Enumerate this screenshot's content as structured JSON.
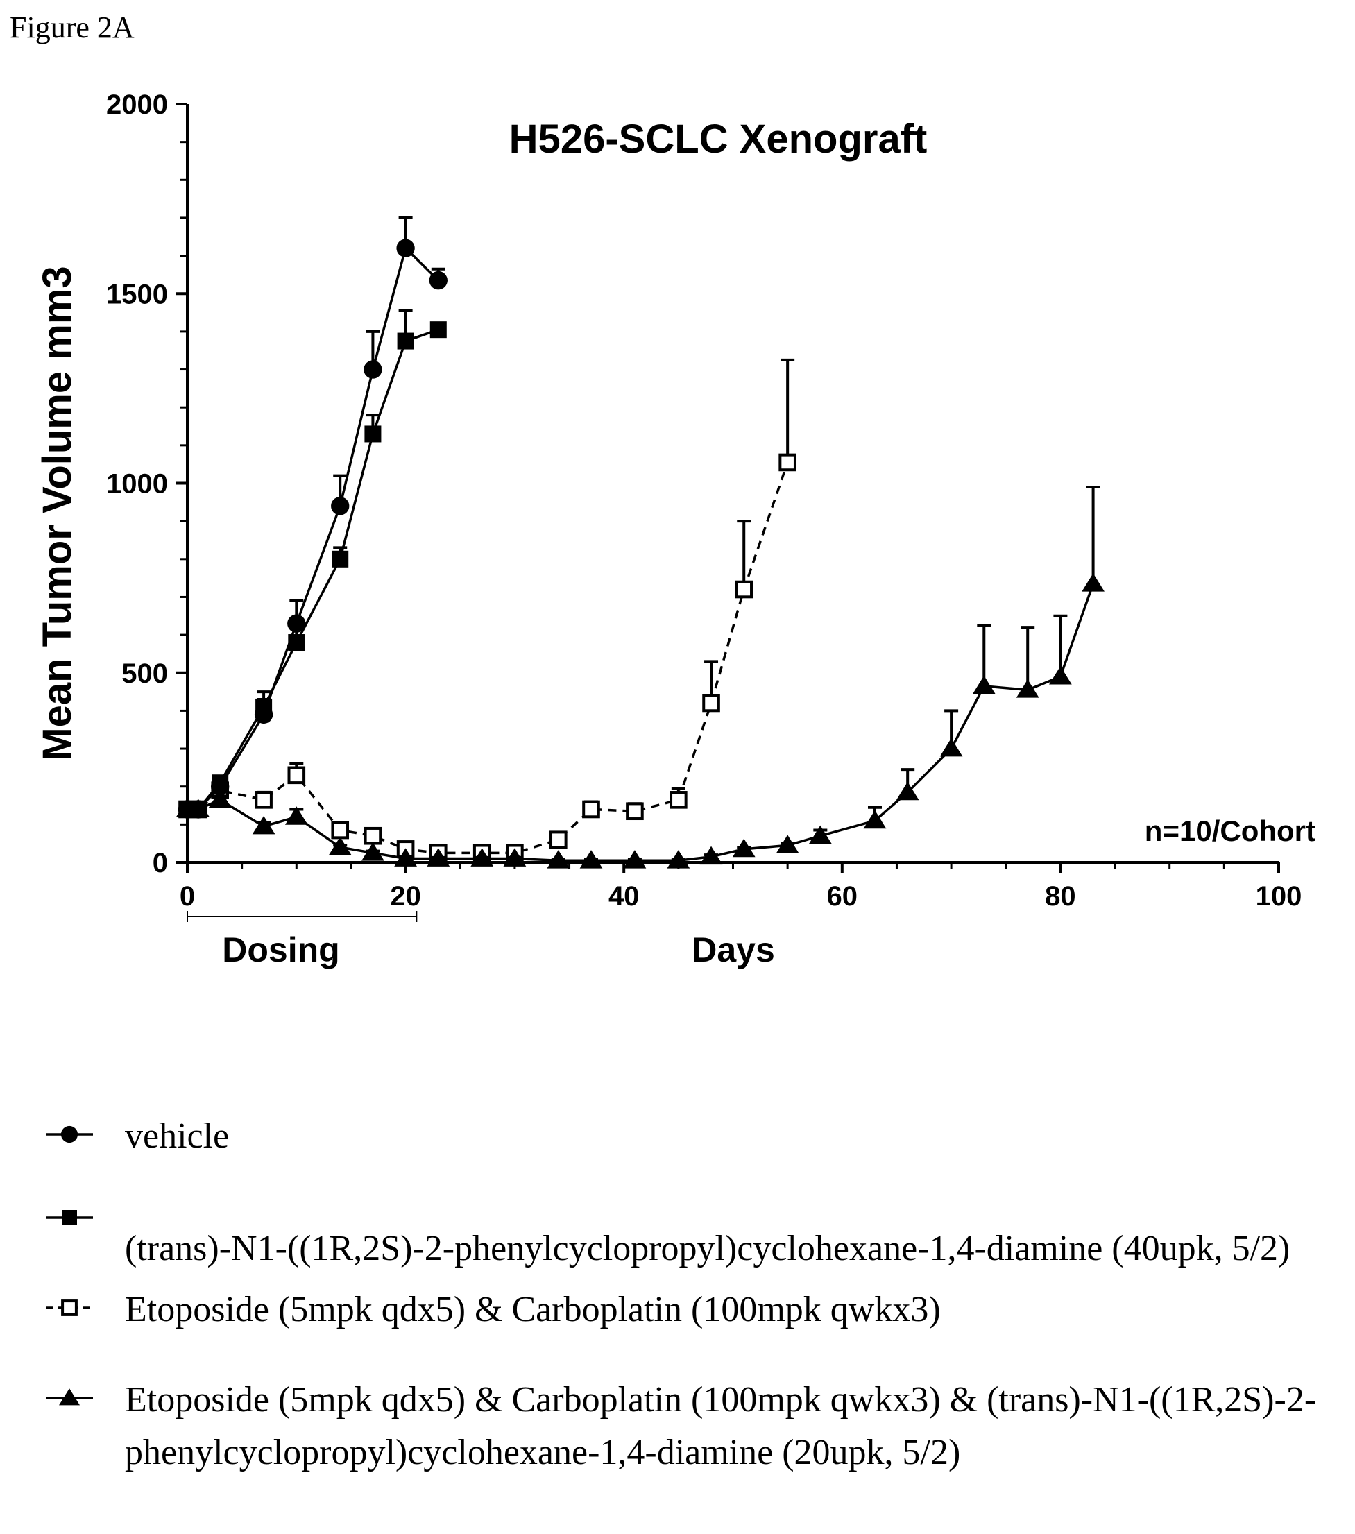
{
  "figure_label": "Figure 2A",
  "chart_data": {
    "type": "line",
    "title": "H526-SCLC Xenograft",
    "xlabel": "Days",
    "ylabel": "Mean Tumor Volume mm3",
    "xlim": [
      0,
      100
    ],
    "ylim": [
      0,
      2000
    ],
    "xticks": [
      0,
      20,
      40,
      60,
      80,
      100
    ],
    "yticks": [
      0,
      500,
      1000,
      1500,
      2000
    ],
    "annotations": {
      "cohort_note": "n=10/Cohort",
      "dosing_label": "Dosing",
      "dosing_range": [
        0,
        21
      ]
    },
    "series": [
      {
        "name": "vehicle",
        "marker": "filled-circle",
        "line": "solid",
        "x": [
          0,
          1,
          3,
          7,
          10,
          14,
          17,
          20,
          23
        ],
        "y": [
          140,
          140,
          200,
          390,
          630,
          940,
          1300,
          1620,
          1535
        ],
        "err": [
          10,
          10,
          20,
          40,
          60,
          80,
          100,
          80,
          30
        ]
      },
      {
        "name": "(trans)-N1-((1R,2S)-2-phenylcyclopropyl)cyclohexane-1,4-diamine (40upk, 5/2)",
        "marker": "filled-square",
        "line": "solid",
        "x": [
          0,
          1,
          3,
          7,
          10,
          14,
          17,
          20,
          23
        ],
        "y": [
          140,
          140,
          210,
          410,
          580,
          800,
          1130,
          1375,
          1405
        ],
        "err": [
          10,
          10,
          15,
          40,
          40,
          30,
          50,
          80,
          0
        ]
      },
      {
        "name": "Etoposide (5mpk qdx5) & Carboplatin (100mpk qwkx3)",
        "marker": "open-square",
        "line": "dashed",
        "x": [
          0,
          1,
          3,
          7,
          10,
          14,
          17,
          20,
          23,
          27,
          30,
          34,
          37,
          41,
          45,
          48,
          51,
          55
        ],
        "y": [
          140,
          140,
          190,
          165,
          230,
          85,
          70,
          35,
          25,
          25,
          25,
          60,
          140,
          135,
          165,
          420,
          720,
          1055
        ],
        "err": [
          10,
          10,
          15,
          20,
          30,
          10,
          10,
          5,
          5,
          5,
          5,
          10,
          20,
          20,
          30,
          110,
          180,
          270
        ]
      },
      {
        "name": "Etoposide (5mpk qdx5) & Carboplatin (100mpk qwkx3) & (trans)-N1-((1R,2S)-2-phenylcyclopropyl)cyclohexane-1,4-diamine (20upk, 5/2)",
        "marker": "filled-triangle",
        "line": "solid",
        "x": [
          0,
          1,
          3,
          7,
          10,
          14,
          17,
          20,
          23,
          27,
          30,
          34,
          37,
          41,
          45,
          48,
          51,
          55,
          58,
          63,
          66,
          70,
          73,
          77,
          80,
          83
        ],
        "y": [
          140,
          140,
          165,
          95,
          120,
          40,
          25,
          10,
          10,
          10,
          10,
          5,
          5,
          5,
          5,
          15,
          35,
          45,
          70,
          110,
          185,
          300,
          465,
          455,
          490,
          735
        ],
        "err": [
          10,
          10,
          10,
          10,
          20,
          5,
          5,
          3,
          3,
          3,
          3,
          3,
          3,
          3,
          3,
          5,
          5,
          5,
          15,
          35,
          60,
          100,
          160,
          165,
          160,
          255
        ]
      }
    ],
    "legend_position": "bottom",
    "grid": false
  }
}
